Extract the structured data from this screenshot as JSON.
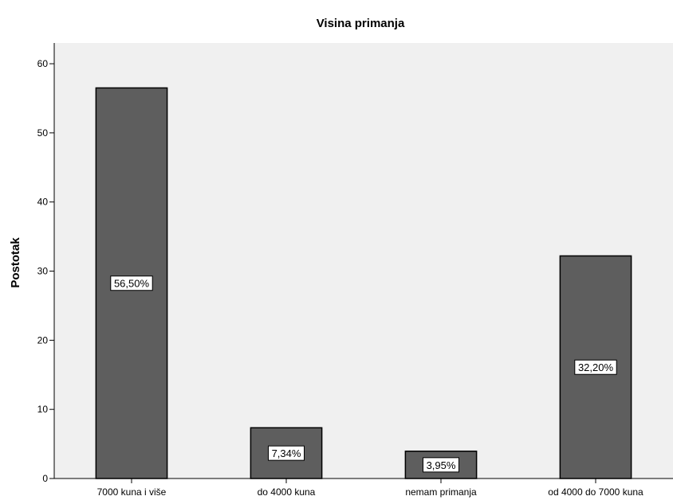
{
  "chart_data": {
    "type": "bar",
    "title": "Visina primanja",
    "xlabel": "",
    "ylabel": "Postotak",
    "categories": [
      "7000 kuna i više",
      "do 4000 kuna",
      "nemam primanja",
      "od 4000 do 7000 kuna"
    ],
    "values": [
      56.5,
      7.34,
      3.95,
      32.2
    ],
    "data_labels": [
      "56,50%",
      "7,34%",
      "3,95%",
      "32,20%"
    ],
    "ylim": [
      0,
      63
    ],
    "yticks": [
      0,
      10,
      20,
      30,
      40,
      50,
      60
    ],
    "grid": false,
    "legend": "none",
    "colors": {
      "plot_background": "#f0f0f0",
      "bar_fill": "#5e5e5e",
      "bar_stroke": "#000000"
    }
  }
}
